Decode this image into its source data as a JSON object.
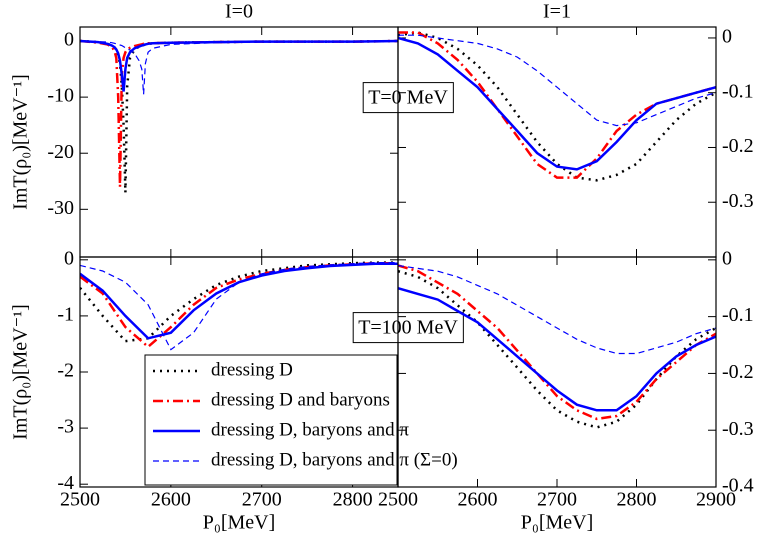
{
  "chart_data": [
    {
      "type": "line",
      "title": "I=0",
      "ylabel": "ImT(ρ₀)[MeV⁻¹]",
      "annotation": "T=0 MeV",
      "yaxis_side": "left",
      "xlim": [
        2500,
        2850
      ],
      "xticks": [
        2500,
        2600,
        2700,
        2800
      ],
      "ylim": [
        -38.5,
        2.5
      ],
      "yticks": [
        0,
        -10,
        -20,
        -30
      ],
      "x": [
        2500,
        2520,
        2530,
        2535,
        2538,
        2540,
        2542,
        2544,
        2546,
        2548,
        2550,
        2552,
        2555,
        2560,
        2565,
        2568,
        2570,
        2572,
        2575,
        2580,
        2600,
        2650,
        2700,
        2800,
        2850
      ],
      "series": [
        {
          "name": "dressing D",
          "color": "#000000",
          "dash": "dotted",
          "values": [
            0,
            -0.2,
            -0.5,
            -0.8,
            -1.2,
            -1.6,
            -2.5,
            -4,
            -8,
            -15,
            -27,
            -8,
            -3,
            -1.5,
            -1,
            -0.8,
            -0.7,
            -0.6,
            -0.5,
            -0.4,
            -0.3,
            -0.2,
            -0.1,
            -0.1,
            0
          ]
        },
        {
          "name": "dressing D and baryons",
          "color": "#ff0000",
          "dash": "dashdot",
          "values": [
            0,
            -0.3,
            -0.6,
            -1,
            -1.8,
            -3,
            -10,
            -26,
            -6,
            -3,
            -2,
            -1.5,
            -1.2,
            -0.9,
            -0.7,
            -0.6,
            -0.5,
            -0.5,
            -0.4,
            -0.4,
            -0.3,
            -0.2,
            -0.1,
            -0.1,
            0
          ]
        },
        {
          "name": "dressing D, baryons and π",
          "color": "#0000ff",
          "dash": "solid",
          "values": [
            0,
            -0.2,
            -0.5,
            -0.8,
            -1.1,
            -1.5,
            -2.2,
            -3.5,
            -6,
            -9,
            -5,
            -3,
            -2,
            -1.3,
            -1,
            -0.8,
            -0.7,
            -0.6,
            -0.5,
            -0.4,
            -0.3,
            -0.2,
            -0.1,
            -0.1,
            0
          ]
        },
        {
          "name": "dressing D, baryons and π (Σ=0)",
          "color": "#0000ff",
          "dash": "dashed",
          "values": [
            0,
            -0.1,
            -0.2,
            -0.3,
            -0.4,
            -0.5,
            -0.6,
            -0.7,
            -0.8,
            -1,
            -1.2,
            -1.4,
            -1.6,
            -2.2,
            -3.5,
            -5,
            -9.5,
            -4,
            -2,
            -1.3,
            -0.6,
            -0.3,
            -0.2,
            -0.1,
            0
          ]
        }
      ]
    },
    {
      "type": "line",
      "title": "I=1",
      "yaxis_side": "right",
      "xlim": [
        2500,
        2900
      ],
      "xticks": [
        2500,
        2600,
        2700,
        2800,
        2900
      ],
      "ylim": [
        -0.4,
        0.02
      ],
      "yticks": [
        0,
        -0.1,
        -0.2,
        -0.3
      ],
      "x": [
        2500,
        2525,
        2550,
        2575,
        2600,
        2625,
        2650,
        2675,
        2700,
        2725,
        2750,
        2775,
        2800,
        2825,
        2850,
        2875,
        2900
      ],
      "series": [
        {
          "name": "dressing D",
          "color": "#000000",
          "dash": "dotted",
          "values": [
            0.005,
            0.01,
            0,
            -0.02,
            -0.05,
            -0.09,
            -0.14,
            -0.19,
            -0.23,
            -0.255,
            -0.26,
            -0.25,
            -0.23,
            -0.19,
            -0.15,
            -0.12,
            -0.1
          ]
        },
        {
          "name": "dressing D and baryons",
          "color": "#ff0000",
          "dash": "dashdot",
          "values": [
            0.01,
            0.01,
            -0.01,
            -0.04,
            -0.08,
            -0.13,
            -0.18,
            -0.23,
            -0.255,
            -0.255,
            -0.22,
            -0.17,
            -0.14,
            -0.12,
            -0.11,
            -0.1,
            -0.09
          ]
        },
        {
          "name": "dressing D, baryons and π",
          "color": "#0000ff",
          "dash": "solid",
          "values": [
            0,
            -0.01,
            -0.03,
            -0.06,
            -0.09,
            -0.13,
            -0.17,
            -0.21,
            -0.235,
            -0.24,
            -0.225,
            -0.19,
            -0.15,
            -0.12,
            -0.11,
            -0.1,
            -0.09
          ]
        },
        {
          "name": "dressing D, baryons and π (Σ=0)",
          "color": "#0000ff",
          "dash": "dashed",
          "values": [
            0.005,
            0.005,
            0,
            -0.005,
            -0.01,
            -0.02,
            -0.035,
            -0.06,
            -0.09,
            -0.12,
            -0.15,
            -0.16,
            -0.155,
            -0.14,
            -0.125,
            -0.11,
            -0.1
          ]
        }
      ]
    },
    {
      "type": "line",
      "ylabel": "ImT(ρ₀)[MeV⁻¹]",
      "xlabel": "P₀[MeV]",
      "annotation": "T=100 MeV",
      "yaxis_side": "left",
      "legend": "lower left",
      "xlim": [
        2500,
        2850
      ],
      "xticks": [
        2500,
        2600,
        2700,
        2800
      ],
      "ylim": [
        -4.05,
        0.05
      ],
      "yticks": [
        0,
        -1,
        -2,
        -3,
        -4
      ],
      "x": [
        2500,
        2525,
        2550,
        2575,
        2600,
        2625,
        2650,
        2675,
        2700,
        2725,
        2750,
        2775,
        2800,
        2825,
        2850
      ],
      "series": [
        {
          "name": "dressing D",
          "color": "#000000",
          "dash": "dotted",
          "values": [
            -0.5,
            -1.0,
            -1.45,
            -1.4,
            -1.0,
            -0.7,
            -0.45,
            -0.3,
            -0.2,
            -0.15,
            -0.1,
            -0.08,
            -0.06,
            -0.05,
            -0.05
          ]
        },
        {
          "name": "dressing D and baryons",
          "color": "#ff0000",
          "dash": "dashdot",
          "values": [
            -0.3,
            -0.6,
            -1.2,
            -1.55,
            -1.2,
            -0.8,
            -0.5,
            -0.35,
            -0.25,
            -0.18,
            -0.13,
            -0.1,
            -0.08,
            -0.06,
            -0.06
          ]
        },
        {
          "name": "dressing D, baryons and π",
          "color": "#0000ff",
          "dash": "solid",
          "values": [
            -0.25,
            -0.55,
            -1.0,
            -1.4,
            -1.3,
            -0.9,
            -0.6,
            -0.4,
            -0.28,
            -0.2,
            -0.15,
            -0.11,
            -0.09,
            -0.07,
            -0.07
          ]
        },
        {
          "name": "dressing D, baryons and π (Σ=0)",
          "color": "#0000ff",
          "dash": "dashed",
          "values": [
            -0.1,
            -0.2,
            -0.4,
            -0.8,
            -1.6,
            -1.3,
            -0.7,
            -0.4,
            -0.25,
            -0.17,
            -0.12,
            -0.09,
            -0.07,
            -0.05,
            -0.05
          ]
        }
      ]
    },
    {
      "type": "line",
      "xlabel": "P₀[MeV]",
      "yaxis_side": "right",
      "xlim": [
        2500,
        2900
      ],
      "xticks": [
        2500,
        2600,
        2700,
        2800,
        2900
      ],
      "ylim": [
        -0.4,
        0.005
      ],
      "yticks": [
        0,
        -0.1,
        -0.2,
        -0.3,
        -0.4
      ],
      "x": [
        2500,
        2525,
        2550,
        2575,
        2600,
        2625,
        2650,
        2675,
        2700,
        2725,
        2750,
        2775,
        2800,
        2825,
        2850,
        2875,
        2900
      ],
      "series": [
        {
          "name": "dressing D",
          "color": "#000000",
          "dash": "dotted",
          "values": [
            -0.02,
            -0.03,
            -0.05,
            -0.08,
            -0.11,
            -0.15,
            -0.19,
            -0.23,
            -0.265,
            -0.285,
            -0.295,
            -0.285,
            -0.255,
            -0.21,
            -0.17,
            -0.14,
            -0.12
          ]
        },
        {
          "name": "dressing D and baryons",
          "color": "#ff0000",
          "dash": "dashdot",
          "values": [
            -0.01,
            -0.02,
            -0.04,
            -0.06,
            -0.09,
            -0.12,
            -0.16,
            -0.2,
            -0.24,
            -0.265,
            -0.28,
            -0.275,
            -0.25,
            -0.21,
            -0.18,
            -0.15,
            -0.13
          ]
        },
        {
          "name": "dressing D, baryons and π",
          "color": "#0000ff",
          "dash": "solid",
          "values": [
            -0.05,
            -0.06,
            -0.07,
            -0.09,
            -0.11,
            -0.14,
            -0.17,
            -0.2,
            -0.23,
            -0.255,
            -0.265,
            -0.265,
            -0.24,
            -0.2,
            -0.17,
            -0.15,
            -0.135
          ]
        },
        {
          "name": "dressing D, baryons and π (Σ=0)",
          "color": "#0000ff",
          "dash": "dashed",
          "values": [
            -0.01,
            -0.015,
            -0.02,
            -0.03,
            -0.045,
            -0.06,
            -0.08,
            -0.1,
            -0.12,
            -0.14,
            -0.155,
            -0.165,
            -0.165,
            -0.155,
            -0.145,
            -0.13,
            -0.12
          ]
        }
      ]
    }
  ]
}
